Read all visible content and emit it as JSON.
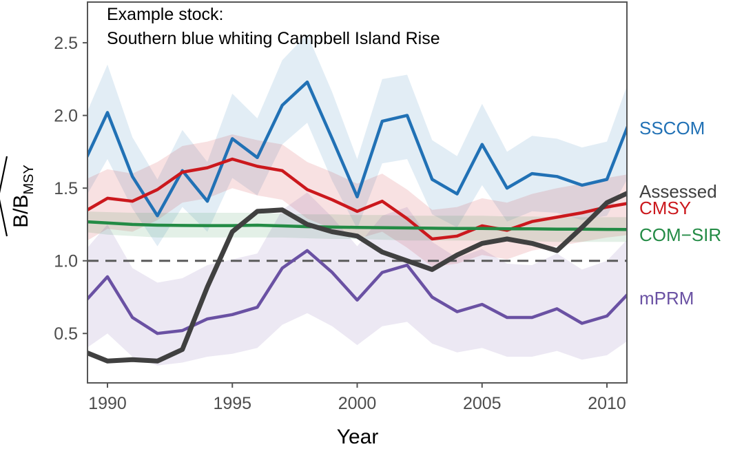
{
  "chart_data": {
    "type": "line",
    "annotation_lines": [
      "Example stock:",
      "Southern blue whiting Campbell Island Rise"
    ],
    "xlabel": "Year",
    "ylabel": {
      "main": "B/B",
      "sub": "MSY"
    },
    "xlim": [
      1989.2,
      2010.8
    ],
    "ylim": [
      0.16,
      2.78
    ],
    "x_ticks": [
      1990,
      1995,
      2000,
      2005,
      2010
    ],
    "y_ticks": [
      0.5,
      1.0,
      1.5,
      2.0,
      2.5
    ],
    "x_tick_labels": [
      "1990",
      "1995",
      "2000",
      "2005",
      "2010"
    ],
    "y_tick_labels": [
      "0.5",
      "1.0",
      "1.5",
      "2.0",
      "2.5"
    ],
    "reference_line": {
      "y": 1.0,
      "style": "dashed"
    },
    "grid": false,
    "x": [
      1989,
      1990,
      1991,
      1992,
      1993,
      1994,
      1995,
      1996,
      1997,
      1998,
      1999,
      2000,
      2001,
      2002,
      2003,
      2004,
      2005,
      2006,
      2007,
      2008,
      2009,
      2010,
      2011
    ],
    "series": [
      {
        "key": "sscom",
        "name": "SSCOM",
        "color": "#2171b5",
        "values": [
          1.65,
          2.02,
          1.58,
          1.31,
          1.62,
          1.41,
          1.84,
          1.71,
          2.07,
          2.23,
          1.84,
          1.44,
          1.96,
          2.0,
          1.56,
          1.46,
          1.8,
          1.5,
          1.6,
          1.58,
          1.52,
          1.56,
          2.0
        ],
        "lower": [
          1.4,
          1.7,
          1.36,
          1.1,
          1.37,
          1.2,
          1.57,
          1.45,
          1.8,
          1.95,
          1.55,
          1.22,
          1.67,
          1.7,
          1.32,
          1.23,
          1.52,
          1.27,
          1.34,
          1.33,
          1.28,
          1.31,
          1.62
        ],
        "upper": [
          1.95,
          2.35,
          1.85,
          1.56,
          1.9,
          1.68,
          2.15,
          1.98,
          2.38,
          2.56,
          2.16,
          1.7,
          2.25,
          2.28,
          1.83,
          1.72,
          2.08,
          1.75,
          1.86,
          1.84,
          1.78,
          1.82,
          2.3
        ]
      },
      {
        "key": "cmsy",
        "name": "CMSY",
        "color": "#cb181d",
        "values": [
          1.33,
          1.43,
          1.41,
          1.49,
          1.61,
          1.64,
          1.7,
          1.65,
          1.62,
          1.49,
          1.42,
          1.34,
          1.41,
          1.29,
          1.15,
          1.17,
          1.24,
          1.21,
          1.27,
          1.3,
          1.33,
          1.37,
          1.4
        ],
        "lower": [
          1.12,
          1.22,
          1.2,
          1.28,
          1.4,
          1.43,
          1.5,
          1.45,
          1.42,
          1.29,
          1.22,
          1.15,
          1.2,
          1.09,
          0.96,
          0.98,
          1.04,
          1.01,
          1.07,
          1.1,
          1.13,
          1.16,
          1.18
        ],
        "upper": [
          1.55,
          1.63,
          1.6,
          1.68,
          1.79,
          1.82,
          1.87,
          1.83,
          1.8,
          1.68,
          1.61,
          1.53,
          1.6,
          1.49,
          1.35,
          1.37,
          1.43,
          1.4,
          1.46,
          1.5,
          1.53,
          1.57,
          1.6
        ]
      },
      {
        "key": "comsir",
        "name": "COM−SIR",
        "color": "#238b45",
        "values": [
          1.27,
          1.26,
          1.25,
          1.245,
          1.243,
          1.242,
          1.242,
          1.245,
          1.24,
          1.235,
          1.232,
          1.23,
          1.228,
          1.226,
          1.224,
          1.222,
          1.222,
          1.22,
          1.22,
          1.218,
          1.218,
          1.216,
          1.215
        ],
        "lower": [
          1.2,
          1.18,
          1.17,
          1.16,
          1.16,
          1.16,
          1.16,
          1.16,
          1.16,
          1.155,
          1.15,
          1.15,
          1.145,
          1.14,
          1.14,
          1.14,
          1.14,
          1.135,
          1.135,
          1.13,
          1.13,
          1.13,
          1.13
        ],
        "upper": [
          1.34,
          1.335,
          1.33,
          1.33,
          1.33,
          1.33,
          1.33,
          1.33,
          1.325,
          1.32,
          1.32,
          1.315,
          1.315,
          1.31,
          1.31,
          1.31,
          1.31,
          1.305,
          1.305,
          1.3,
          1.3,
          1.3,
          1.3
        ]
      },
      {
        "key": "mprm",
        "name": "mPRM",
        "color": "#6a51a3",
        "values": [
          0.7,
          0.89,
          0.61,
          0.5,
          0.52,
          0.6,
          0.63,
          0.68,
          0.95,
          1.07,
          0.92,
          0.73,
          0.92,
          0.97,
          0.75,
          0.65,
          0.7,
          0.61,
          0.61,
          0.67,
          0.57,
          0.62,
          0.8
        ],
        "lower": [
          0.38,
          0.5,
          0.34,
          0.28,
          0.3,
          0.34,
          0.36,
          0.4,
          0.56,
          0.64,
          0.55,
          0.42,
          0.55,
          0.58,
          0.43,
          0.37,
          0.4,
          0.34,
          0.34,
          0.38,
          0.32,
          0.35,
          0.47
        ],
        "upper": [
          1.05,
          1.25,
          0.95,
          0.85,
          0.88,
          0.97,
          1.01,
          1.05,
          1.35,
          1.47,
          1.3,
          1.1,
          1.31,
          1.37,
          1.13,
          1.02,
          1.08,
          0.98,
          0.97,
          1.05,
          0.94,
          1.0,
          1.18
        ]
      },
      {
        "key": "assessed",
        "name": "Assessed",
        "color": "#404040",
        "values": [
          0.38,
          0.31,
          0.32,
          0.31,
          0.39,
          0.82,
          1.2,
          1.34,
          1.35,
          1.25,
          1.2,
          1.17,
          1.06,
          1.0,
          0.94,
          1.04,
          1.12,
          1.15,
          1.12,
          1.07,
          1.23,
          1.4,
          1.48
        ]
      }
    ],
    "label_order": [
      "sscom",
      "assessed",
      "cmsy",
      "comsir",
      "mprm"
    ]
  }
}
